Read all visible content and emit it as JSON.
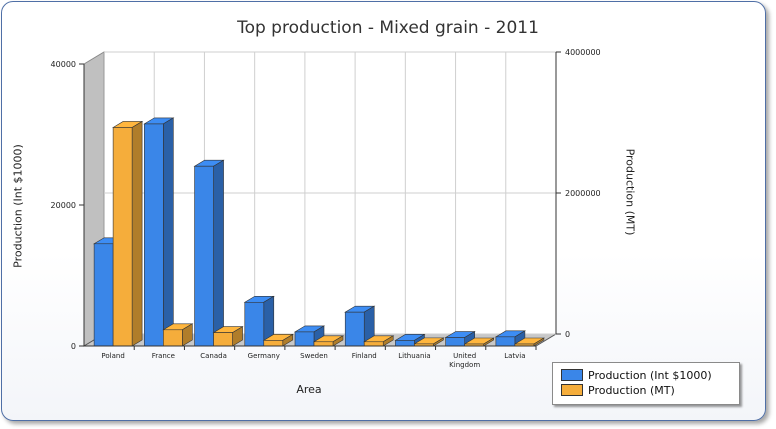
{
  "chart_data": {
    "type": "bar",
    "title": "Top production - Mixed grain - 2011",
    "xlabel": "Area",
    "ylabel_left": "Production (Int $1000)",
    "ylabel_right": "Production (MT)",
    "categories": [
      "Poland",
      "France",
      "Canada",
      "Germany",
      "Sweden",
      "Finland",
      "Lithuania",
      "United Kingdom",
      "Latvia"
    ],
    "series": [
      {
        "name": "Production (Int $1000)",
        "axis": "left",
        "color": "#3a86e8",
        "values": [
          14500,
          31500,
          25500,
          6200,
          2000,
          4800,
          800,
          1200,
          1300
        ]
      },
      {
        "name": "Production (MT)",
        "axis": "right",
        "color": "#f5ad3b",
        "values": [
          3100000,
          230000,
          190000,
          80000,
          60000,
          60000,
          30000,
          20000,
          10000
        ]
      }
    ],
    "ylim_left": [
      0,
      40000
    ],
    "ylim_right": [
      0,
      4000000
    ],
    "yticks_left": [
      0,
      20000,
      40000
    ],
    "yticks_right": [
      0,
      2000000,
      4000000
    ],
    "grid": true,
    "legend_position": "bottom-right"
  }
}
